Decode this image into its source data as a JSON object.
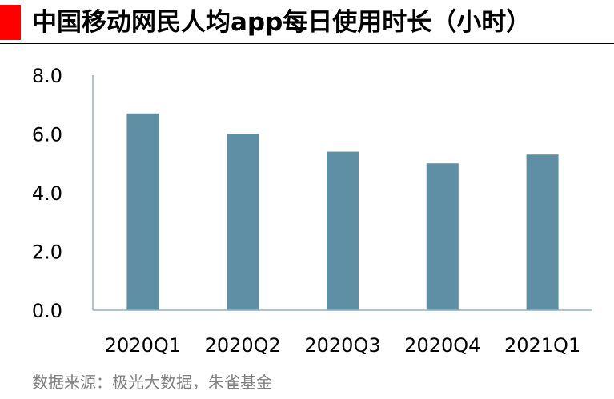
{
  "header": {
    "title": "中国移动网民人均app每日使用时长（小时）"
  },
  "source": "数据来源：极光大数据，朱雀基金",
  "colors": {
    "accent": "#ff0000",
    "bar": "#5f8fa5",
    "axis": "#8fb0bf",
    "text": "#000000",
    "source": "#808080"
  },
  "chart_data": {
    "type": "bar",
    "title": "中国移动网民人均app每日使用时长（小时）",
    "categories": [
      "2020Q1",
      "2020Q2",
      "2020Q3",
      "2020Q4",
      "2021Q1"
    ],
    "values": [
      6.7,
      6.0,
      5.4,
      5.0,
      5.3
    ],
    "ylim": [
      0,
      8
    ],
    "yticks": [
      "0.0",
      "2.0",
      "4.0",
      "6.0",
      "8.0"
    ],
    "xlabel": "",
    "ylabel": "",
    "grid": false,
    "legend": "none"
  }
}
